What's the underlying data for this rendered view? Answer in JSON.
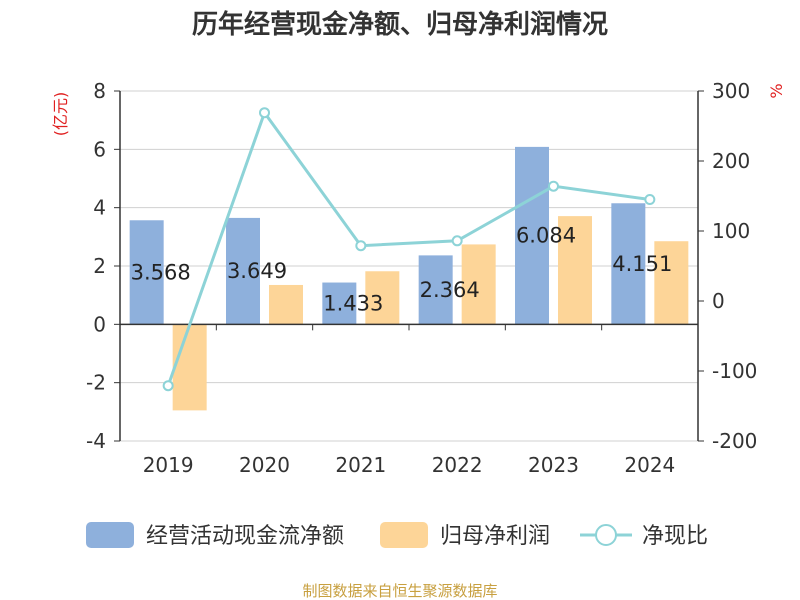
{
  "chart_data": {
    "type": "bar",
    "title": "历年经营现金净额、归母净利润情况",
    "categories": [
      "2019",
      "2020",
      "2021",
      "2022",
      "2023",
      "2024"
    ],
    "y_left": {
      "unit": "(亿元)",
      "ylim": [
        -4,
        8
      ],
      "ticks": [
        "8",
        "6",
        "4",
        "2",
        "0",
        "-2",
        "-4"
      ],
      "tick_values": [
        8,
        6,
        4,
        2,
        0,
        -2,
        -4
      ]
    },
    "y_right": {
      "unit": "%",
      "ylim": [
        -200,
        300
      ],
      "ticks": [
        "300",
        "200",
        "100",
        "0",
        "-100",
        "-200"
      ],
      "tick_values": [
        300,
        200,
        100,
        0,
        -100,
        -200
      ]
    },
    "series": [
      {
        "name": "经营活动现金流净额",
        "type": "bar",
        "color": "#8eb0dc",
        "values": [
          3.568,
          3.649,
          1.433,
          2.364,
          6.084,
          4.151
        ],
        "labels": [
          "3.568",
          "3.649",
          "1.433",
          "2.364",
          "6.084",
          "4.151"
        ]
      },
      {
        "name": "归母净利润",
        "type": "bar",
        "color": "#fdd598",
        "values": [
          -2.95,
          1.35,
          1.82,
          2.74,
          3.71,
          2.85
        ]
      },
      {
        "name": "净现比",
        "type": "line",
        "axis": "right",
        "color": "#8dd3d7",
        "values": [
          -121,
          269,
          79,
          86,
          164,
          145
        ]
      }
    ],
    "legend_position": "bottom",
    "grid": true,
    "source": "制图数据来自恒生聚源数据库",
    "colors": {
      "axis": "#333333",
      "grid": "#d0d0d0",
      "unit": "#e02020",
      "source": "#c8a040"
    }
  }
}
